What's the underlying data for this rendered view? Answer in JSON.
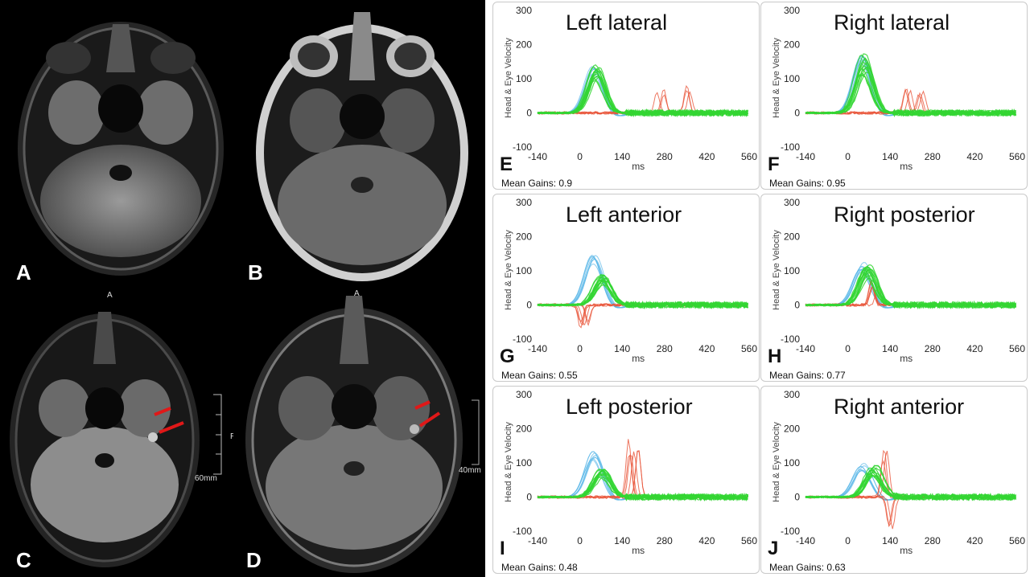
{
  "mri_panels": [
    {
      "letter": "A",
      "marker": ""
    },
    {
      "letter": "B",
      "marker": ""
    },
    {
      "letter": "C",
      "marker": "A",
      "scale_side": "R",
      "scale_label": "60mm"
    },
    {
      "letter": "D",
      "marker": "A",
      "scale_label": "40mm"
    }
  ],
  "vhit": {
    "ylabel": "Head & Eye Velocity",
    "xlabel": "ms",
    "y_ticks": [
      "300",
      "200",
      "100",
      "0",
      "-100"
    ],
    "x_ticks": [
      "-140",
      "0",
      "140",
      "280",
      "420",
      "560"
    ],
    "panels": [
      {
        "letter": "E",
        "title": "Left lateral",
        "gain": "Mean Gains: 0.9"
      },
      {
        "letter": "F",
        "title": "Right lateral",
        "gain": "Mean Gains: 0.95"
      },
      {
        "letter": "G",
        "title": "Left anterior",
        "gain": "Mean Gains: 0.55"
      },
      {
        "letter": "H",
        "title": "Right posterior",
        "gain": "Mean Gains: 0.77"
      },
      {
        "letter": "I",
        "title": "Left posterior",
        "gain": "Mean Gains: 0.48"
      },
      {
        "letter": "J",
        "title": "Right anterior",
        "gain": "Mean Gains: 0.63"
      }
    ],
    "colors": {
      "head": "#5bb8e8",
      "eye": "#33d633",
      "catchup": "#e8553a"
    }
  }
}
